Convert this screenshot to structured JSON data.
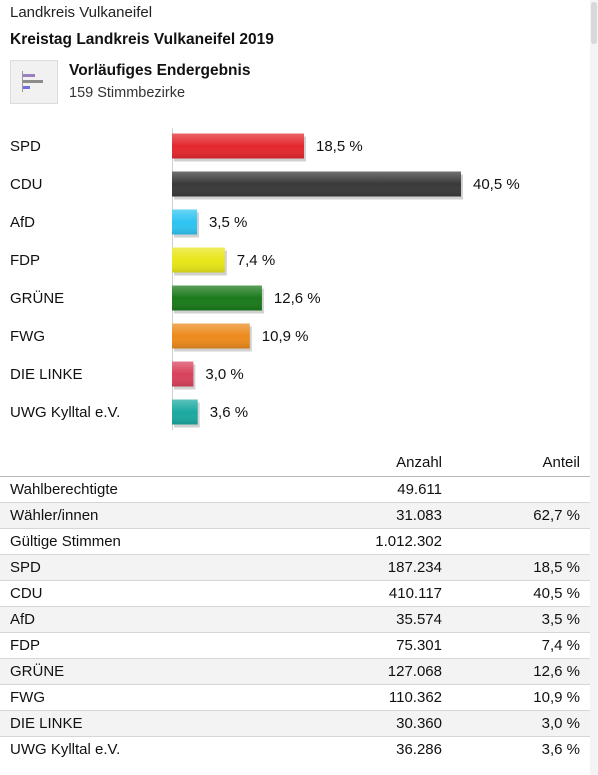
{
  "header": {
    "region": "Landkreis Vulkaneifel",
    "election": "Kreistag Landkreis Vulkaneifel 2019"
  },
  "status": {
    "icon": "bar-chart-icon",
    "title": "Vorläufiges Endergebnis",
    "subtitle": "159 Stimmbezirke"
  },
  "chart_data": {
    "type": "bar",
    "orientation": "horizontal",
    "categories": [
      "SPD",
      "CDU",
      "AfD",
      "FDP",
      "GRÜNE",
      "FWG",
      "DIE LINKE",
      "UWG Kylltal e.V."
    ],
    "values": [
      18.5,
      40.5,
      3.5,
      7.4,
      12.6,
      10.9,
      3.0,
      3.6
    ],
    "value_labels": [
      "18,5 %",
      "40,5 %",
      "3,5 %",
      "7,4 %",
      "12,6 %",
      "10,9 %",
      "3,0 %",
      "3,6 %"
    ],
    "colors": [
      "#e3282d",
      "#3a3a3a",
      "#2ec4f2",
      "#e8e61a",
      "#1b7a1b",
      "#ec8a1c",
      "#d9425c",
      "#1aa9a0"
    ],
    "xlim": [
      0,
      40.5
    ],
    "grid": false,
    "legend": "none"
  },
  "table": {
    "headers": {
      "name": "",
      "count": "Anzahl",
      "share": "Anteil"
    },
    "rows": [
      {
        "name": "Wahlberechtigte",
        "count": "49.611",
        "share": ""
      },
      {
        "name": "Wähler/innen",
        "count": "31.083",
        "share": "62,7 %"
      },
      {
        "name": "Gültige Stimmen",
        "count": "1.012.302",
        "share": ""
      },
      {
        "name": "SPD",
        "count": "187.234",
        "share": "18,5 %"
      },
      {
        "name": "CDU",
        "count": "410.117",
        "share": "40,5 %"
      },
      {
        "name": "AfD",
        "count": "35.574",
        "share": "3,5 %"
      },
      {
        "name": "FDP",
        "count": "75.301",
        "share": "7,4 %"
      },
      {
        "name": "GRÜNE",
        "count": "127.068",
        "share": "12,6 %"
      },
      {
        "name": "FWG",
        "count": "110.362",
        "share": "10,9 %"
      },
      {
        "name": "DIE LINKE",
        "count": "30.360",
        "share": "3,0 %"
      },
      {
        "name": "UWG Kylltal e.V.",
        "count": "36.286",
        "share": "3,6 %"
      }
    ]
  }
}
